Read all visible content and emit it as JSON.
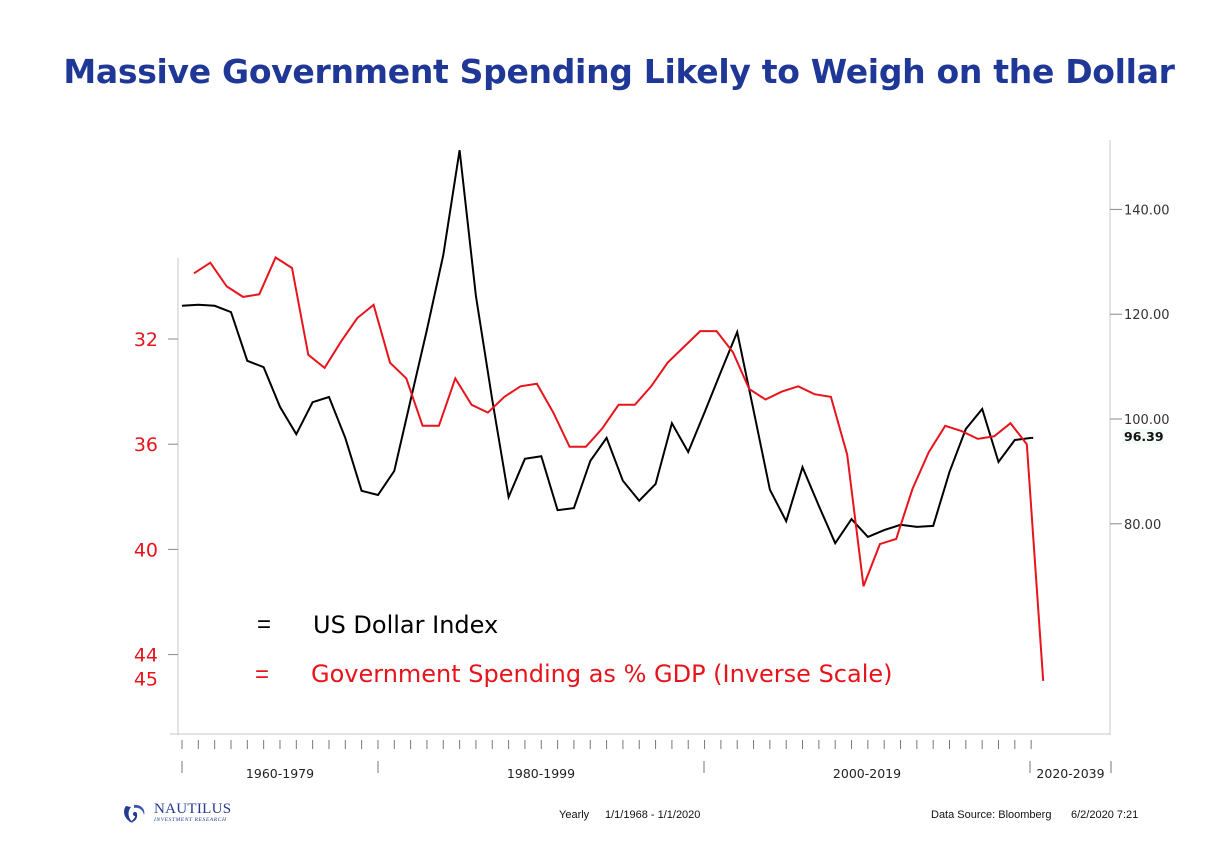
{
  "title": "Massive Government Spending Likely to Weigh on the Dollar",
  "footer": {
    "frequency": "Yearly",
    "date_range": "1/1/1968 - 1/1/2020",
    "source": "Data Source: Bloomberg",
    "timestamp": "6/2/2020 7:21"
  },
  "logo": {
    "name": "NAUTILUS",
    "tagline": "INVESTMENT RESEARCH",
    "icon": "swirl-logo-icon"
  },
  "colors": {
    "title": "#1f3796",
    "usd": "#000000",
    "spending": "#e8141c",
    "axis": "#c8c8c8"
  },
  "chart_data": {
    "type": "line",
    "title": "Massive Government Spending Likely to Weigh on the Dollar",
    "xlabel": "",
    "x": [
      1968,
      1969,
      1970,
      1971,
      1972,
      1973,
      1974,
      1975,
      1976,
      1977,
      1978,
      1979,
      1980,
      1981,
      1982,
      1983,
      1984,
      1985,
      1986,
      1987,
      1988,
      1989,
      1990,
      1991,
      1992,
      1993,
      1994,
      1995,
      1996,
      1997,
      1998,
      1999,
      2000,
      2001,
      2002,
      2003,
      2004,
      2005,
      2006,
      2007,
      2008,
      2009,
      2010,
      2011,
      2012,
      2013,
      2014,
      2015,
      2016,
      2017,
      2018,
      2019,
      2020
    ],
    "x_period_labels": [
      "1960-1979",
      "1980-1999",
      "2000-2019",
      "2020-2039"
    ],
    "series": [
      {
        "name": "US Dollar Index",
        "axis": "right",
        "color": "#000000",
        "values": [
          121.6,
          121.8,
          121.6,
          120.4,
          111.1,
          109.9,
          102.3,
          97.1,
          103.2,
          104.2,
          96.4,
          86.3,
          85.5,
          90.1,
          103.6,
          117.0,
          131.3,
          151.3,
          123.5,
          103.6,
          85.1,
          92.4,
          92.9,
          82.6,
          83.0,
          92.0,
          96.4,
          88.2,
          84.4,
          87.6,
          99.2,
          93.7,
          101.3,
          109.0,
          116.6,
          101.7,
          86.5,
          80.5,
          90.8,
          83.4,
          76.3,
          80.9,
          77.5,
          78.8,
          79.8,
          79.4,
          79.6,
          89.9,
          98.1,
          101.9,
          91.8,
          96.0,
          96.39
        ],
        "last_value_label": "96.39"
      },
      {
        "name": "Government Spending as % GDP (Inverse Scale)",
        "axis": "left",
        "inverted": true,
        "color": "#e8141c",
        "values": [
          29.5,
          29.1,
          30.0,
          30.4,
          30.3,
          28.9,
          29.3,
          32.6,
          33.1,
          32.1,
          31.2,
          30.7,
          32.9,
          33.5,
          35.3,
          35.3,
          33.5,
          34.5,
          34.8,
          34.2,
          33.8,
          33.7,
          34.8,
          36.1,
          36.1,
          35.4,
          34.5,
          34.5,
          33.8,
          32.9,
          32.3,
          31.7,
          31.7,
          32.5,
          33.9,
          34.3,
          34.0,
          33.8,
          34.1,
          34.2,
          36.4,
          41.4,
          39.8,
          39.6,
          37.7,
          36.3,
          35.3,
          35.5,
          35.8,
          35.7,
          35.2,
          36.0,
          45.0
        ]
      }
    ],
    "left_axis": {
      "ticks": [
        32,
        36,
        40,
        44
      ],
      "extra_label": "45",
      "labels": [
        "32",
        "36",
        "40",
        "44",
        "45"
      ],
      "inverted": true
    },
    "right_axis": {
      "ticks": [
        80,
        100,
        120,
        140
      ],
      "labels": [
        "80.00",
        "100.00",
        "120.00",
        "140.00"
      ]
    },
    "legend": [
      {
        "symbol": "=",
        "label": "US Dollar Index",
        "color": "#000000"
      },
      {
        "symbol": "=",
        "label": "Government Spending as % GDP (Inverse Scale)",
        "color": "#e8141c"
      }
    ],
    "legend_position": "bottom-left",
    "grid": false
  }
}
